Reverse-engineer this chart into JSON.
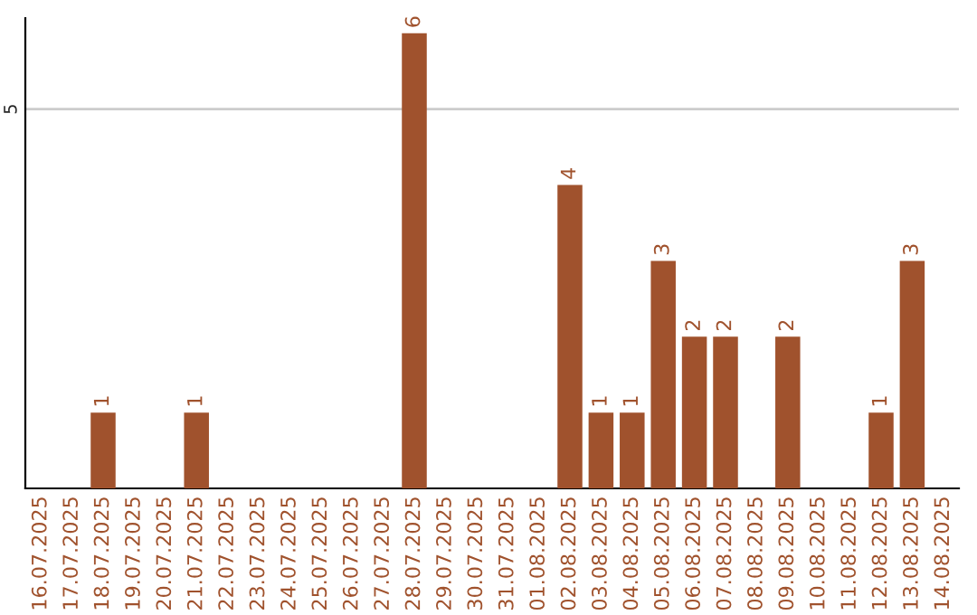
{
  "chart_data": {
    "type": "bar",
    "categories": [
      "16.07.2025",
      "17.07.2025",
      "18.07.2025",
      "19.07.2025",
      "20.07.2025",
      "21.07.2025",
      "22.07.2025",
      "23.07.2025",
      "24.07.2025",
      "25.07.2025",
      "26.07.2025",
      "27.07.2025",
      "28.07.2025",
      "29.07.2025",
      "30.07.2025",
      "31.07.2025",
      "01.08.2025",
      "02.08.2025",
      "03.08.2025",
      "04.08.2025",
      "05.08.2025",
      "06.08.2025",
      "07.08.2025",
      "08.08.2025",
      "09.08.2025",
      "10.08.2025",
      "11.08.2025",
      "12.08.2025",
      "13.08.2025",
      "14.08.2025"
    ],
    "values": [
      null,
      null,
      1,
      null,
      null,
      1,
      null,
      null,
      null,
      null,
      null,
      null,
      6,
      null,
      null,
      null,
      null,
      4,
      1,
      1,
      3,
      2,
      2,
      null,
      2,
      null,
      null,
      1,
      3,
      null
    ],
    "data_labels": true,
    "color": "#a0522d",
    "ylim": [
      0,
      6.2
    ],
    "yticks": [
      5
    ],
    "grid": "y"
  }
}
